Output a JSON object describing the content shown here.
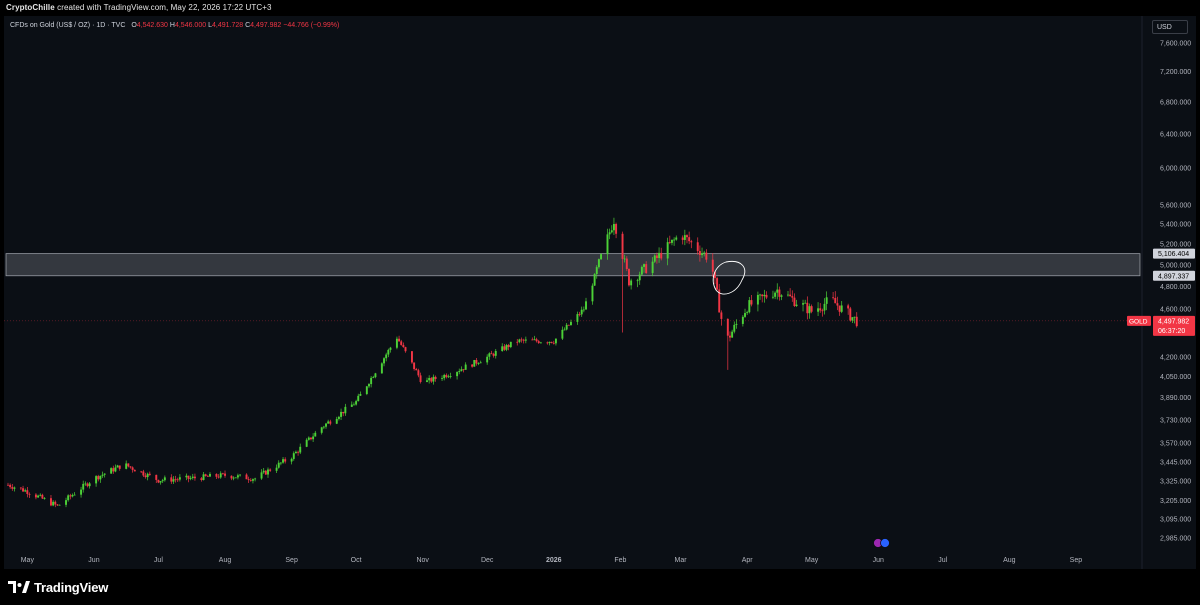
{
  "header": {
    "credit_user": "CryptoChille",
    "credit_rest": " created with TradingView.com, May 22, 2026 17:22 UTC+3"
  },
  "legend": {
    "symbol_line": "CFDs on Gold (US$ / OZ) · 1D · TVC",
    "o_label": "O",
    "o_value": "4,542.630",
    "h_label": "H",
    "h_value": "4,546.000",
    "l_label": "L",
    "l_value": "4,491.728",
    "c_label": "C",
    "c_value": "4,497.982",
    "change": "−44.766 (−0.99%)"
  },
  "price_axis": {
    "currency": "USD",
    "ticks": [
      "7,600.000",
      "7,200.000",
      "6,800.000",
      "6,400.000",
      "6,000.000",
      "5,600.000",
      "5,400.000",
      "5,200.000",
      "5,000.000",
      "4,800.000",
      "4,600.000",
      "4,200.000",
      "4,050.000",
      "3,890.000",
      "3,730.000",
      "3,570.000",
      "3,445.000",
      "3,325.000",
      "3,205.000",
      "3,095.000",
      "2,985.000"
    ],
    "zone_top_label": "5,106.404",
    "zone_bottom_label": "4,897.337",
    "last_price_symbol": "GOLD",
    "last_price": "4,497.982",
    "countdown": "06:37:20"
  },
  "time_axis": {
    "ticks": [
      "May",
      "Jun",
      "Jul",
      "Aug",
      "Sep",
      "Oct",
      "Nov",
      "Dec",
      "2026",
      "Feb",
      "Mar",
      "Apr",
      "May",
      "Jun",
      "Jul",
      "Aug",
      "Sep"
    ],
    "bold_tick": "2026"
  },
  "chart_data": {
    "type": "candlestick",
    "symbol": "GOLD",
    "interval": "1D",
    "scale": "log",
    "y_axis_range": [
      2985,
      7600
    ],
    "x_axis_range": [
      "2025-04-22",
      "2026-09-15"
    ],
    "resistance_zone": [
      4897.337,
      5106.404
    ],
    "last_price": 4497.982,
    "colors": {
      "up": "#4cd137",
      "down": "#f23645",
      "zone": "#c8ccd4",
      "background": "#0b0f15"
    },
    "annotation": "hand-drawn circle near Mar 2026 breakdown at ~4,900",
    "path_approx": [
      {
        "date": "2025-04-22",
        "close": 3300
      },
      {
        "date": "2025-05-01",
        "close": 3260
      },
      {
        "date": "2025-05-15",
        "close": 3170
      },
      {
        "date": "2025-06-01",
        "close": 3340
      },
      {
        "date": "2025-06-15",
        "close": 3430
      },
      {
        "date": "2025-07-01",
        "close": 3330
      },
      {
        "date": "2025-07-15",
        "close": 3340
      },
      {
        "date": "2025-08-01",
        "close": 3360
      },
      {
        "date": "2025-08-15",
        "close": 3340
      },
      {
        "date": "2025-09-01",
        "close": 3480
      },
      {
        "date": "2025-09-15",
        "close": 3680
      },
      {
        "date": "2025-10-01",
        "close": 3860
      },
      {
        "date": "2025-10-20",
        "close": 4360
      },
      {
        "date": "2025-11-01",
        "close": 4000
      },
      {
        "date": "2025-11-15",
        "close": 4080
      },
      {
        "date": "2025-12-01",
        "close": 4200
      },
      {
        "date": "2025-12-15",
        "close": 4330
      },
      {
        "date": "2026-01-01",
        "close": 4330
      },
      {
        "date": "2026-01-15",
        "close": 4600
      },
      {
        "date": "2026-01-29",
        "close": 5450
      },
      {
        "date": "2026-02-05",
        "close": 4850
      },
      {
        "date": "2026-02-15",
        "close": 5000
      },
      {
        "date": "2026-03-01",
        "close": 5300
      },
      {
        "date": "2026-03-15",
        "close": 5050
      },
      {
        "date": "2026-03-22",
        "close": 4320
      },
      {
        "date": "2026-04-01",
        "close": 4620
      },
      {
        "date": "2026-04-15",
        "close": 4770
      },
      {
        "date": "2026-05-01",
        "close": 4580
      },
      {
        "date": "2026-05-10",
        "close": 4680
      },
      {
        "date": "2026-05-22",
        "close": 4498
      }
    ]
  },
  "branding": {
    "name": "TradingView"
  }
}
